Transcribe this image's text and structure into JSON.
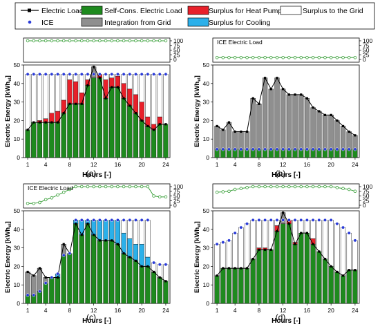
{
  "legend": {
    "items": [
      {
        "key": "electric_load",
        "label": "Electric Load",
        "swatch": "line-square",
        "color": "#000000"
      },
      {
        "key": "self_cons",
        "label": "Self-Cons. Electric Load",
        "swatch": "box",
        "color": "#1e8a1e"
      },
      {
        "key": "surplus_hp",
        "label": "Surplus for Heat Pump",
        "swatch": "box",
        "color": "#e8202a"
      },
      {
        "key": "surplus_grid",
        "label": "Surplus to the Grid",
        "swatch": "box",
        "color": "#ffffff"
      },
      {
        "key": "ice",
        "label": "ICE",
        "swatch": "dot",
        "color": "#2a3bd8"
      },
      {
        "key": "grid_import",
        "label": "Integration from Grid",
        "swatch": "box",
        "color": "#8f8f8f"
      },
      {
        "key": "surplus_cool",
        "label": "Surplus for Cooling",
        "swatch": "box",
        "color": "#2bb0ea"
      }
    ]
  },
  "colors": {
    "self_cons": "#1e8a1e",
    "grid_import": "#8f8f8f",
    "surplus_hp": "#e8202a",
    "surplus_cool": "#2bb0ea",
    "surplus_grid": "#ffffff",
    "ice": "#2a3bd8",
    "ice_load_line": "#3aa03a"
  },
  "chart_data": [
    {
      "panel": "(a)",
      "type": "bar",
      "stacked": true,
      "x": [
        1,
        2,
        3,
        4,
        5,
        6,
        7,
        8,
        9,
        10,
        11,
        12,
        13,
        14,
        15,
        16,
        17,
        18,
        19,
        20,
        21,
        22,
        23,
        24
      ],
      "xticks": [
        1,
        4,
        8,
        12,
        16,
        20,
        24
      ],
      "xlabel": "Hours [-]",
      "ylabel": "Electric Energy [kWh",
      "ylabel_sub": "el",
      "ylabel_end": "]",
      "ylim": [
        0,
        50
      ],
      "yticks": [
        0,
        10,
        20,
        30,
        40,
        50
      ],
      "ice_panel": {
        "label": "ICE Electric Load",
        "ylim": [
          0,
          100
        ],
        "yticks": [
          0,
          25,
          50,
          75,
          100
        ],
        "values": [
          100,
          100,
          100,
          100,
          100,
          100,
          100,
          100,
          100,
          100,
          100,
          100,
          100,
          100,
          100,
          100,
          100,
          100,
          100,
          100,
          100,
          100,
          100,
          100
        ]
      },
      "electric_load": [
        15,
        19,
        19,
        19,
        19,
        19,
        24,
        29,
        29,
        29,
        39,
        49,
        43,
        32,
        38,
        38,
        32,
        28,
        24,
        20,
        17,
        15,
        18,
        18
      ],
      "ice": [
        45,
        45,
        45,
        45,
        45,
        45,
        45,
        45,
        45,
        45,
        45,
        45,
        45,
        45,
        45,
        45,
        45,
        45,
        45,
        45,
        45,
        45,
        45,
        45
      ],
      "series": [
        {
          "key": "self_cons",
          "values": [
            15,
            19,
            19,
            19,
            19,
            19,
            24,
            29,
            29,
            29,
            39,
            43,
            43,
            32,
            38,
            38,
            32,
            28,
            24,
            20,
            17,
            15,
            18,
            18
          ]
        },
        {
          "key": "grid_import",
          "values": [
            0,
            0,
            0,
            0,
            0,
            0,
            0,
            0,
            0,
            0,
            0,
            6,
            0,
            0,
            0,
            0,
            0,
            0,
            0,
            0,
            0,
            0,
            0,
            0
          ]
        },
        {
          "key": "surplus_hp",
          "values": [
            0,
            0,
            1,
            2,
            5,
            6,
            7,
            13,
            12,
            6,
            3,
            0,
            2,
            10,
            5,
            6,
            8,
            9,
            10,
            10,
            5,
            3,
            4,
            0
          ]
        },
        {
          "key": "surplus_cool",
          "values": [
            0,
            0,
            0,
            0,
            0,
            0,
            0,
            0,
            0,
            0,
            0,
            0,
            0,
            0,
            0,
            0,
            0,
            0,
            0,
            0,
            0,
            0,
            0,
            0
          ]
        },
        {
          "key": "surplus_grid",
          "values": [
            30,
            26,
            25,
            24,
            21,
            20,
            14,
            3,
            4,
            10,
            3,
            0,
            0,
            3,
            2,
            1,
            5,
            8,
            11,
            15,
            23,
            27,
            23,
            27
          ]
        }
      ]
    },
    {
      "panel": "(b)",
      "type": "bar",
      "stacked": true,
      "x": [
        1,
        2,
        3,
        4,
        5,
        6,
        7,
        8,
        9,
        10,
        11,
        12,
        13,
        14,
        15,
        16,
        17,
        18,
        19,
        20,
        21,
        22,
        23,
        24
      ],
      "xticks": [
        1,
        4,
        8,
        12,
        16,
        20,
        24
      ],
      "xlabel": "Hours [-]",
      "ylabel": "Electric Energy [kWh",
      "ylabel_sub": "el",
      "ylabel_end": "]",
      "ylim": [
        0,
        50
      ],
      "yticks": [
        0,
        10,
        20,
        30,
        40,
        50
      ],
      "ice_panel": {
        "label": "ICE Electric Load",
        "ylim": [
          0,
          100
        ],
        "yticks": [
          0,
          25,
          50,
          75,
          100
        ],
        "values": [
          10,
          10,
          10,
          10,
          10,
          10,
          10,
          10,
          10,
          10,
          10,
          10,
          10,
          10,
          10,
          10,
          10,
          10,
          10,
          10,
          10,
          10,
          10,
          10
        ]
      },
      "electric_load": [
        17,
        15,
        19,
        14,
        14,
        14,
        32,
        29,
        43,
        37,
        43,
        37,
        34,
        34,
        34,
        32,
        27,
        25,
        23,
        23,
        20,
        17,
        14,
        12
      ],
      "ice": [
        4.5,
        4.5,
        4.5,
        4.5,
        4.5,
        4.5,
        4.5,
        4.5,
        4.5,
        4.5,
        4.5,
        4.5,
        4.5,
        4.5,
        4.5,
        4.5,
        4.5,
        4.5,
        4.5,
        4.5,
        4.5,
        4.5,
        4.5,
        4.5
      ],
      "series": [
        {
          "key": "self_cons",
          "values": [
            4.5,
            4.5,
            4.5,
            4.5,
            4.5,
            4.5,
            4.5,
            4.5,
            4.5,
            4.5,
            4.5,
            4.5,
            4.5,
            4.5,
            4.5,
            4.5,
            4.5,
            4.5,
            4.5,
            4.5,
            4.5,
            4.5,
            4.5,
            4.5
          ]
        },
        {
          "key": "grid_import",
          "values": [
            12.5,
            10.5,
            14.5,
            9.5,
            9.5,
            9.5,
            27.5,
            24.5,
            38.5,
            32.5,
            38.5,
            32.5,
            29.5,
            29.5,
            29.5,
            27.5,
            22.5,
            20.5,
            18.5,
            18.5,
            15.5,
            12.5,
            9.5,
            7.5
          ]
        },
        {
          "key": "surplus_hp",
          "values": [
            0,
            0,
            0,
            0,
            0,
            0,
            0,
            0,
            0,
            0,
            0,
            0,
            0,
            0,
            0,
            0,
            0,
            0,
            0,
            0,
            0,
            0,
            0,
            0
          ]
        },
        {
          "key": "surplus_cool",
          "values": [
            0,
            0,
            0,
            0,
            0,
            0,
            0,
            0,
            0,
            0,
            0,
            0,
            0,
            0,
            0,
            0,
            0,
            0,
            0,
            0,
            0,
            0,
            0,
            0
          ]
        },
        {
          "key": "surplus_grid",
          "values": [
            0,
            0,
            0,
            0,
            0,
            0,
            0,
            0,
            0,
            0,
            0,
            0,
            0,
            0,
            0,
            0,
            0,
            0,
            0,
            0,
            0,
            0,
            0,
            0
          ]
        }
      ]
    },
    {
      "panel": "(c)",
      "type": "bar",
      "stacked": true,
      "x": [
        1,
        2,
        3,
        4,
        5,
        6,
        7,
        8,
        9,
        10,
        11,
        12,
        13,
        14,
        15,
        16,
        17,
        18,
        19,
        20,
        21,
        22,
        23,
        24
      ],
      "xticks": [
        1,
        4,
        8,
        12,
        16,
        20,
        24
      ],
      "xlabel": "Hours [-]",
      "ylabel": "Electric Energy [kWh",
      "ylabel_sub": "el",
      "ylabel_end": "]",
      "ylim": [
        0,
        50
      ],
      "yticks": [
        0,
        10,
        20,
        30,
        40,
        50
      ],
      "ice_panel": {
        "label": "ICE Electric Load",
        "ylim": [
          0,
          100
        ],
        "yticks": [
          0,
          25,
          50,
          75,
          100
        ],
        "values": [
          10,
          10,
          15,
          30,
          40,
          55,
          70,
          85,
          100,
          100,
          100,
          100,
          100,
          100,
          100,
          100,
          100,
          100,
          100,
          100,
          100,
          50,
          45,
          45
        ]
      },
      "electric_load": [
        17,
        15,
        19,
        14,
        14,
        14,
        32,
        27,
        43,
        37,
        43,
        37,
        34,
        34,
        34,
        32,
        27,
        25,
        23,
        20,
        20,
        17,
        14,
        12
      ],
      "ice": [
        4.5,
        4.5,
        6.5,
        11,
        14,
        16,
        26,
        27,
        45,
        45,
        45,
        45,
        45,
        45,
        45,
        45,
        45,
        45,
        45,
        45,
        45,
        22,
        21,
        21
      ],
      "series": [
        {
          "key": "self_cons",
          "values": [
            4.5,
            4.5,
            6.5,
            11,
            14,
            14,
            26,
            27,
            43,
            37,
            43,
            37,
            34,
            34,
            34,
            32,
            27,
            25,
            23,
            20,
            20,
            17,
            14,
            12
          ]
        },
        {
          "key": "grid_import",
          "values": [
            12.5,
            10.5,
            12.5,
            3,
            0,
            0,
            6,
            0,
            0,
            0,
            0,
            0,
            0,
            0,
            0,
            0,
            0,
            0,
            0,
            0,
            0,
            0,
            0,
            0
          ]
        },
        {
          "key": "surplus_hp",
          "values": [
            0,
            0,
            0,
            0,
            0,
            0,
            0,
            0,
            0,
            0,
            0,
            0,
            0,
            0,
            0,
            0,
            0,
            0,
            0,
            0,
            0,
            0,
            0,
            0
          ]
        },
        {
          "key": "surplus_cool",
          "values": [
            0,
            0,
            0,
            0,
            0,
            2,
            0,
            0,
            2,
            8,
            2,
            8,
            11,
            11,
            11,
            13,
            11,
            10,
            9,
            12,
            5,
            0,
            0,
            0
          ]
        },
        {
          "key": "surplus_grid",
          "values": [
            0,
            0,
            0,
            0,
            0,
            0,
            0,
            0,
            0,
            0,
            0,
            0,
            0,
            0,
            0,
            0,
            7,
            10,
            13,
            13,
            20,
            5,
            7,
            9
          ]
        }
      ]
    },
    {
      "panel": "(d)",
      "type": "bar",
      "stacked": true,
      "x": [
        1,
        2,
        3,
        4,
        5,
        6,
        7,
        8,
        9,
        10,
        11,
        12,
        13,
        14,
        15,
        16,
        17,
        18,
        19,
        20,
        21,
        22,
        23,
        24
      ],
      "xticks": [
        1,
        4,
        8,
        12,
        16,
        20,
        24
      ],
      "xlabel": "Hours [-]",
      "ylabel": "Electric Energy [kWh",
      "ylabel_sub": "el",
      "ylabel_end": "]",
      "ylim": [
        0,
        50
      ],
      "yticks": [
        0,
        10,
        20,
        30,
        40,
        50
      ],
      "ice_panel": {
        "label": "ICE Electric Load",
        "ylim": [
          0,
          100
        ],
        "yticks": [
          0,
          25,
          50,
          75,
          100
        ],
        "values": [
          70,
          72,
          75,
          85,
          90,
          95,
          100,
          100,
          100,
          100,
          100,
          100,
          100,
          100,
          100,
          100,
          100,
          100,
          100,
          100,
          95,
          90,
          85,
          75
        ]
      },
      "electric_load": [
        15,
        19,
        19,
        19,
        19,
        19,
        24,
        29,
        29,
        29,
        39,
        49,
        43,
        32,
        38,
        38,
        32,
        28,
        24,
        20,
        17,
        15,
        18,
        18
      ],
      "ice": [
        32,
        33,
        34,
        38,
        41,
        43,
        45,
        45,
        45,
        45,
        45,
        45,
        45,
        45,
        45,
        45,
        45,
        45,
        45,
        45,
        43,
        41,
        38,
        34
      ],
      "series": [
        {
          "key": "self_cons",
          "values": [
            15,
            19,
            19,
            19,
            19,
            19,
            24,
            29,
            29,
            29,
            39,
            43,
            43,
            32,
            38,
            38,
            32,
            28,
            24,
            20,
            17,
            15,
            18,
            18
          ]
        },
        {
          "key": "grid_import",
          "values": [
            0,
            0,
            0,
            0,
            0,
            0,
            0,
            0,
            0,
            0,
            0,
            6,
            0,
            0,
            0,
            0,
            0,
            0,
            0,
            0,
            0,
            0,
            0,
            0
          ]
        },
        {
          "key": "surplus_hp",
          "values": [
            0,
            0,
            0,
            0,
            0,
            0,
            0,
            1,
            1,
            0,
            3,
            0,
            2,
            1,
            0,
            0,
            3,
            0,
            0,
            0,
            0,
            0,
            0,
            0
          ]
        },
        {
          "key": "surplus_cool",
          "values": [
            0,
            0,
            0,
            0,
            0,
            0,
            0,
            0,
            0,
            0,
            0,
            0,
            0,
            0,
            0,
            0,
            0,
            0,
            0,
            0,
            0,
            0,
            0,
            0
          ]
        },
        {
          "key": "surplus_grid",
          "values": [
            17,
            14,
            15,
            19,
            22,
            24,
            21,
            15,
            15,
            16,
            3,
            0,
            0,
            12,
            7,
            7,
            10,
            17,
            21,
            25,
            26,
            26,
            20,
            16
          ]
        }
      ]
    }
  ]
}
